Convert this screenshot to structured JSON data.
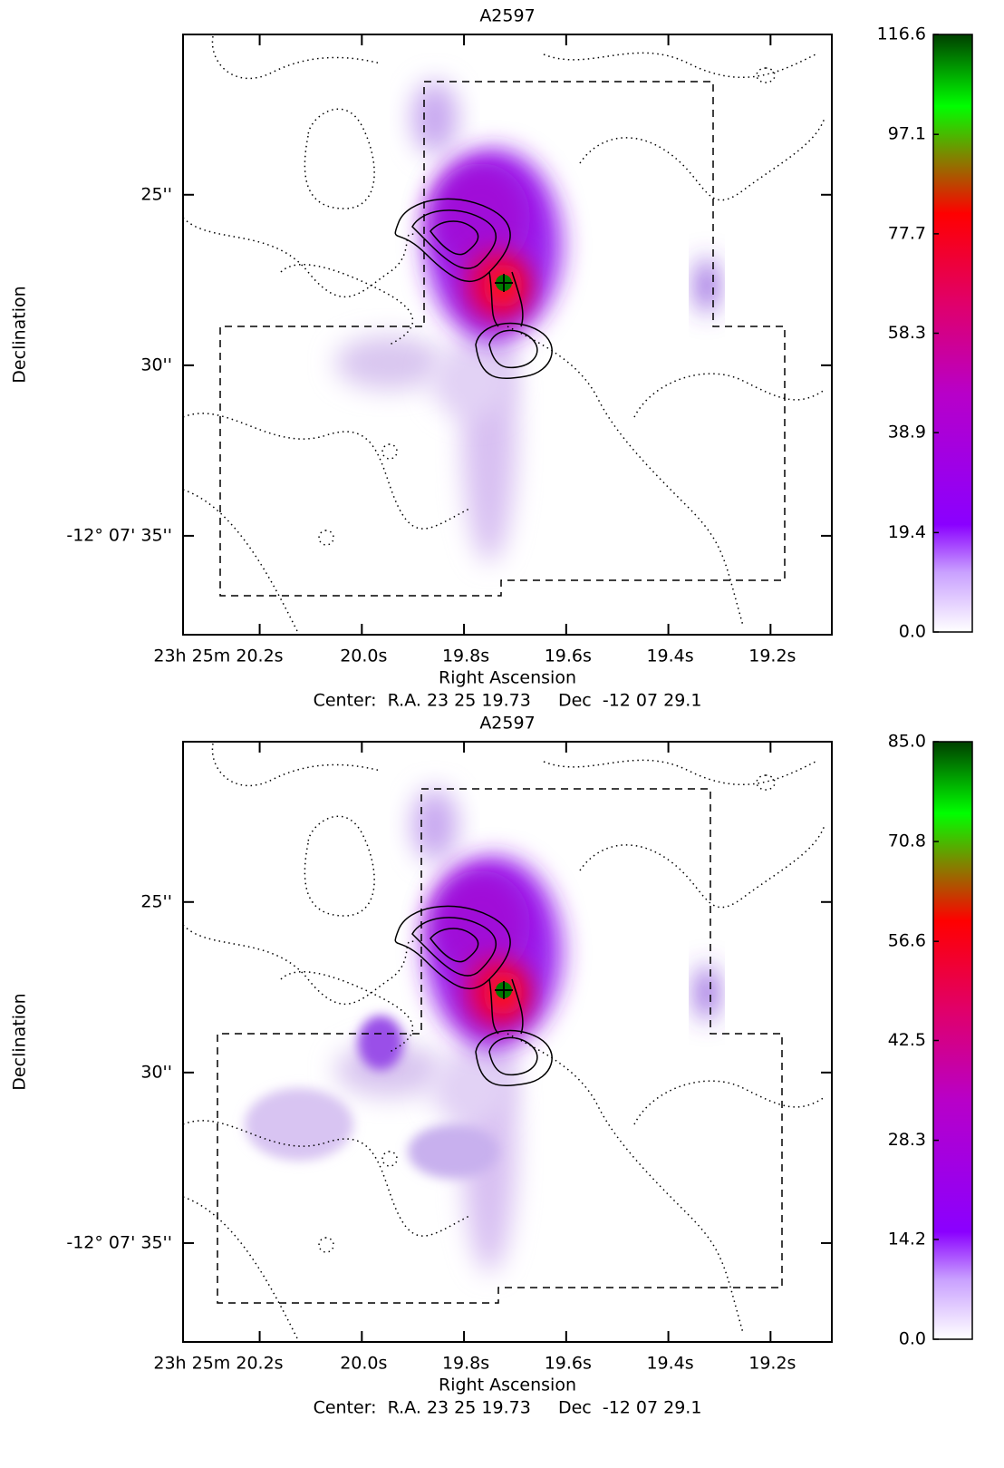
{
  "chart_data": [
    {
      "type": "image",
      "title": "A2597",
      "x_label": "Right Ascension",
      "y_label": "Declination",
      "caption": "Center:  R.A. 23 25 19.73     Dec  -12 07 29.1",
      "xlim": [
        20.35,
        19.08
      ],
      "xticks": [
        {
          "value": 20.2,
          "label": "23h 25m 20.2s"
        },
        {
          "value": 20.0,
          "label": "20.0s"
        },
        {
          "value": 19.8,
          "label": "19.8s"
        },
        {
          "value": 19.6,
          "label": "19.6s"
        },
        {
          "value": 19.4,
          "label": "19.4s"
        },
        {
          "value": 19.2,
          "label": "19.2s"
        }
      ],
      "ylim": [
        37.9,
        20.3
      ],
      "yticks": [
        {
          "value": 25,
          "label": "25''"
        },
        {
          "value": 30,
          "label": "30''"
        },
        {
          "value": 35,
          "label": "-12° 07' 35''"
        }
      ],
      "colorbar": {
        "lim": [
          0,
          116.6
        ],
        "ticks": [
          {
            "value": 0,
            "label": "0.0"
          },
          19.4,
          38.9,
          58.3,
          77.7,
          97.1,
          116.6
        ]
      }
    },
    {
      "type": "image",
      "title": "A2597",
      "x_label": "Right Ascension",
      "y_label": "Declination",
      "caption": "Center:  R.A. 23 25 19.73     Dec  -12 07 29.1",
      "xlim": [
        20.35,
        19.08
      ],
      "xticks": [
        {
          "value": 20.2,
          "label": "23h 25m 20.2s"
        },
        {
          "value": 20.0,
          "label": "20.0s"
        },
        {
          "value": 19.8,
          "label": "19.8s"
        },
        {
          "value": 19.6,
          "label": "19.6s"
        },
        {
          "value": 19.4,
          "label": "19.4s"
        },
        {
          "value": 19.2,
          "label": "19.2s"
        }
      ],
      "ylim": [
        37.9,
        20.3
      ],
      "yticks": [
        {
          "value": 25,
          "label": "25''"
        },
        {
          "value": 30,
          "label": "30''"
        },
        {
          "value": 35,
          "label": "-12° 07' 35''"
        }
      ],
      "colorbar": {
        "lim": [
          0,
          85.0
        ],
        "ticks": [
          {
            "value": 0,
            "label": "0.0"
          },
          14.2,
          28.3,
          42.5,
          56.6,
          70.8,
          {
            "value": 85.0,
            "label": "85.0"
          }
        ]
      }
    }
  ]
}
